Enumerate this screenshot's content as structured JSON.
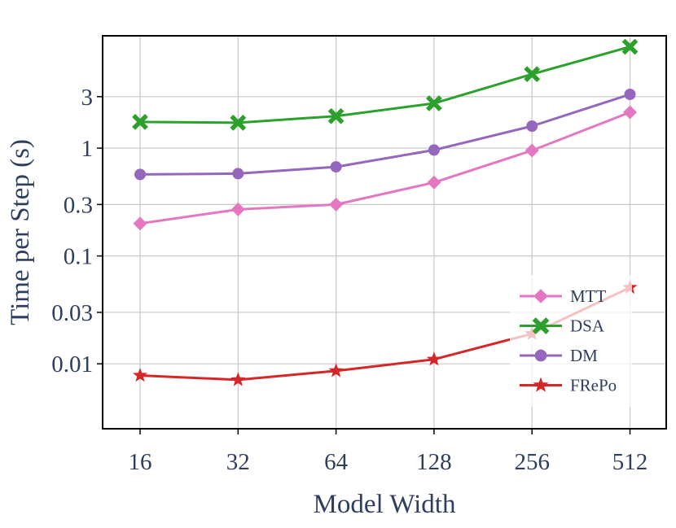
{
  "chart_data": {
    "type": "line",
    "xlabel": "Model Width",
    "ylabel": "Time per Step (s)",
    "x_scale": "log2",
    "y_scale": "log10",
    "categories": [
      "16",
      "32",
      "64",
      "128",
      "256",
      "512"
    ],
    "y_ticks": [
      {
        "value": 0.01,
        "label": "0.01"
      },
      {
        "value": 0.03,
        "label": "0.03"
      },
      {
        "value": 0.1,
        "label": "0.1"
      },
      {
        "value": 0.3,
        "label": "0.3"
      },
      {
        "value": 1,
        "label": "1"
      },
      {
        "value": 3,
        "label": "3"
      }
    ],
    "ylim": [
      0.0025,
      11
    ],
    "grid": true,
    "legend_position": "lower-right",
    "series": [
      {
        "name": "MTT",
        "color": "#e377c2",
        "marker": "diamond",
        "values": [
          0.2,
          0.27,
          0.3,
          0.48,
          0.95,
          2.15
        ]
      },
      {
        "name": "DSA",
        "color": "#2ca02c",
        "marker": "x",
        "values": [
          1.75,
          1.72,
          1.98,
          2.6,
          4.85,
          8.7
        ]
      },
      {
        "name": "DM",
        "color": "#9467bd",
        "marker": "circle",
        "values": [
          0.57,
          0.58,
          0.67,
          0.96,
          1.6,
          3.15
        ]
      },
      {
        "name": "FRePo",
        "color": "#d62728",
        "marker": "star",
        "values": [
          0.0078,
          0.0071,
          0.0086,
          0.011,
          0.019,
          0.051
        ]
      }
    ]
  }
}
